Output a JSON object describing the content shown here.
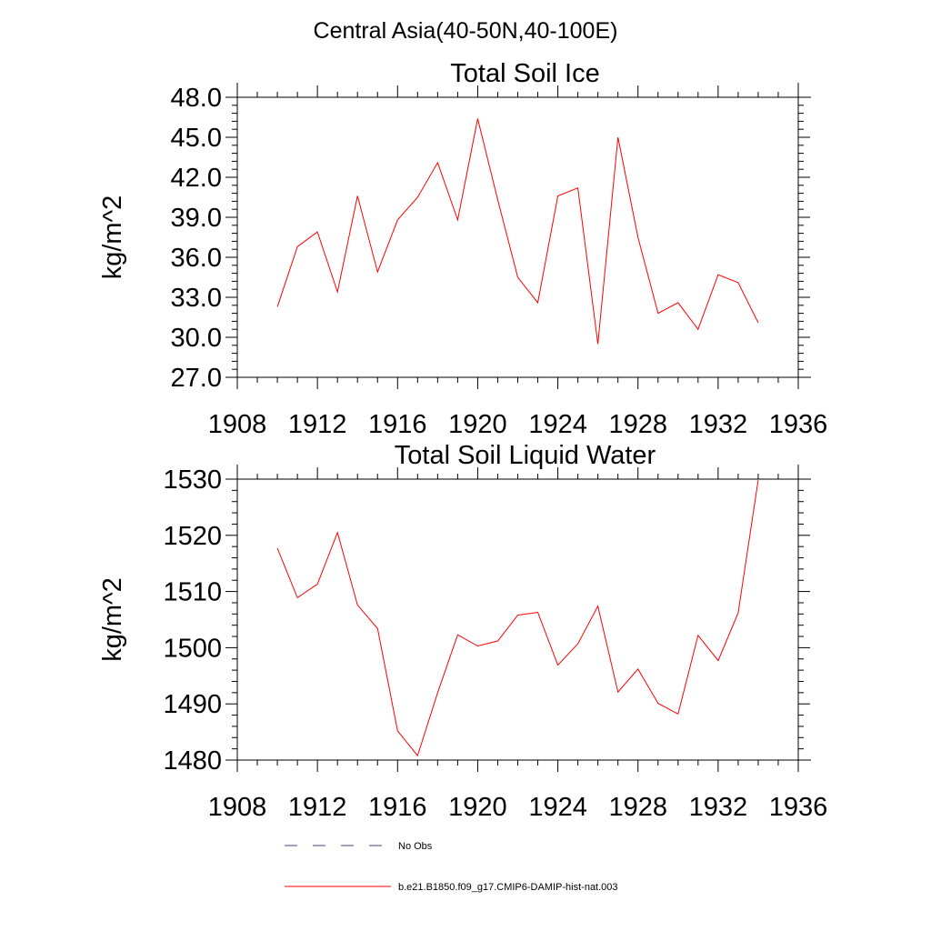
{
  "figure": {
    "title": "Central Asia(40-50N,40-100E)"
  },
  "legend": {
    "items": [
      {
        "label": "No Obs",
        "color": "#3b4a7a",
        "style": "dashed"
      },
      {
        "label": "b.e21.B1850.f09_g17.CMIP6-DAMIP-hist-nat.003",
        "color": "#ff0000",
        "style": "solid"
      }
    ]
  },
  "chart_data": [
    {
      "type": "line",
      "title": "Total Soil Ice",
      "ylabel": "kg/m^2",
      "xlabel": "",
      "xlim": [
        1908,
        1936
      ],
      "ylim": [
        27,
        48
      ],
      "xticks": [
        "1908",
        "1912",
        "1916",
        "1920",
        "1924",
        "1928",
        "1932",
        "1936"
      ],
      "yticks": [
        "27.0",
        "30.0",
        "33.0",
        "36.0",
        "39.0",
        "42.0",
        "45.0",
        "48.0"
      ],
      "grid": false,
      "series": [
        {
          "color": "#ff0000",
          "x": [
            1910,
            1911,
            1912,
            1913,
            1914,
            1915,
            1916,
            1917,
            1918,
            1919,
            1920,
            1921,
            1922,
            1923,
            1924,
            1925,
            1926,
            1927,
            1928,
            1929,
            1930,
            1931,
            1932,
            1933,
            1934
          ],
          "y": [
            32.3,
            36.8,
            37.9,
            33.4,
            40.6,
            34.9,
            38.8,
            40.5,
            43.1,
            38.8,
            46.4,
            40.3,
            34.5,
            32.6,
            40.6,
            41.2,
            29.5,
            45.0,
            37.5,
            31.8,
            32.6,
            30.6,
            34.7,
            34.1,
            31.1
          ]
        }
      ]
    },
    {
      "type": "line",
      "title": "Total Soil Liquid Water",
      "ylabel": "kg/m^2",
      "xlabel": "",
      "xlim": [
        1908,
        1936
      ],
      "ylim": [
        1480,
        1530
      ],
      "xticks": [
        "1908",
        "1912",
        "1916",
        "1920",
        "1924",
        "1928",
        "1932",
        "1936"
      ],
      "yticks": [
        "1480",
        "1490",
        "1500",
        "1510",
        "1520",
        "1530"
      ],
      "grid": false,
      "series": [
        {
          "color": "#ff0000",
          "x": [
            1910,
            1911,
            1912,
            1913,
            1914,
            1915,
            1916,
            1917,
            1918,
            1919,
            1920,
            1921,
            1922,
            1923,
            1924,
            1925,
            1926,
            1927,
            1928,
            1929,
            1930,
            1931,
            1932,
            1933,
            1934
          ],
          "y": [
            1517.7,
            1508.9,
            1511.3,
            1520.5,
            1507.6,
            1503.4,
            1485.2,
            1480.8,
            1492.0,
            1502.3,
            1500.3,
            1501.2,
            1505.8,
            1506.3,
            1496.9,
            1500.7,
            1507.4,
            1492.1,
            1496.2,
            1490.1,
            1488.2,
            1502.2,
            1497.7,
            1506.2,
            1529.8
          ]
        }
      ]
    }
  ]
}
